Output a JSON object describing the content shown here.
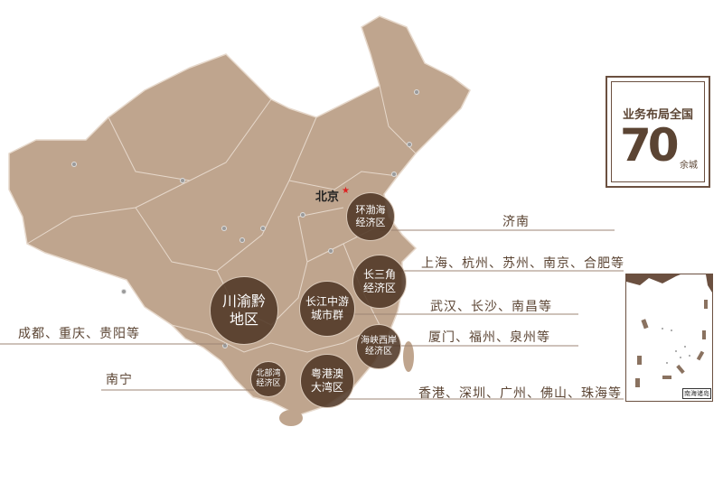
{
  "colors": {
    "map_fill": "#bfa58e",
    "border": "#e6d8cb",
    "circle": "#503726",
    "text": "#5b4433",
    "capital_star": "#dd2222"
  },
  "capital": {
    "name": "北京",
    "icon": "star-icon"
  },
  "badge": {
    "title": "业务布局全国",
    "number": "70",
    "unit": "余城"
  },
  "regions": [
    {
      "name": "环渤海\n经济区",
      "cities": "济南"
    },
    {
      "name": "长三角\n经济区",
      "cities": "上海、杭州、苏州、南京、合肥等"
    },
    {
      "name": "长江中游\n城市群",
      "cities": "武汉、长沙、南昌等"
    },
    {
      "name": "川渝黔\n地区",
      "cities": "成都、重庆、贵阳等"
    },
    {
      "name": "海峡西岸\n经济区",
      "cities": "厦门、福州、泉州等"
    },
    {
      "name": "北部湾\n经济区",
      "cities": "南宁"
    },
    {
      "name": "粤港澳\n大湾区",
      "cities": "香港、深圳、广州、佛山、珠海等"
    }
  ],
  "inset": {
    "label": "南海诸岛"
  }
}
